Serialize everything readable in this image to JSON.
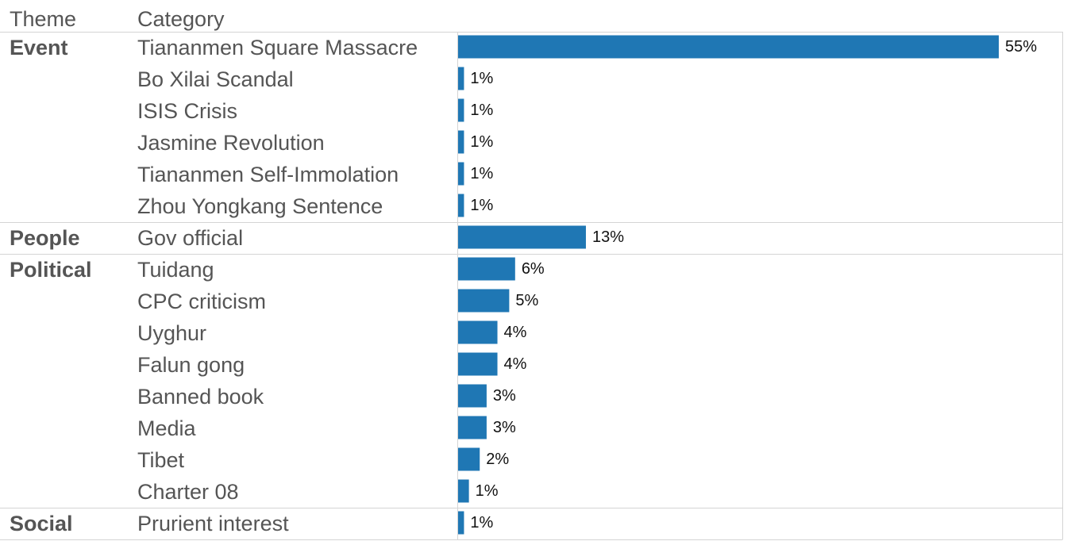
{
  "headers": {
    "theme": "Theme",
    "category": "Category"
  },
  "colors": {
    "bar": "#1f77b4",
    "divider": "#d4d4d4",
    "label": "#555555",
    "value": "#111111"
  },
  "chart_data": {
    "type": "bar",
    "orientation": "horizontal",
    "grouped_by": "theme",
    "value_unit": "%",
    "value_range": [
      0,
      55
    ],
    "groups": [
      {
        "theme": "Event",
        "rows": [
          {
            "category": "Tiananmen Square Massacre",
            "value": 55,
            "label": "55%"
          },
          {
            "category": "Bo Xilai Scandal",
            "value": 0.6,
            "label": "1%"
          },
          {
            "category": "ISIS Crisis",
            "value": 0.6,
            "label": "1%"
          },
          {
            "category": "Jasmine Revolution",
            "value": 0.6,
            "label": "1%"
          },
          {
            "category": "Tiananmen Self-Immolation",
            "value": 0.6,
            "label": "1%"
          },
          {
            "category": "Zhou Yongkang Sentence",
            "value": 0.6,
            "label": "1%"
          }
        ]
      },
      {
        "theme": "People",
        "rows": [
          {
            "category": "Gov official",
            "value": 13,
            "label": "13%"
          }
        ]
      },
      {
        "theme": "Political",
        "rows": [
          {
            "category": "Tuidang",
            "value": 5.8,
            "label": "6%"
          },
          {
            "category": "CPC criticism",
            "value": 5.2,
            "label": "5%"
          },
          {
            "category": "Uyghur",
            "value": 4,
            "label": "4%"
          },
          {
            "category": "Falun gong",
            "value": 4,
            "label": "4%"
          },
          {
            "category": "Banned book",
            "value": 2.9,
            "label": "3%"
          },
          {
            "category": "Media",
            "value": 2.9,
            "label": "3%"
          },
          {
            "category": "Tibet",
            "value": 2.2,
            "label": "2%"
          },
          {
            "category": "Charter 08",
            "value": 1.1,
            "label": "1%"
          }
        ]
      },
      {
        "theme": "Social",
        "rows": [
          {
            "category": "Prurient interest",
            "value": 0.6,
            "label": "1%"
          }
        ]
      }
    ]
  }
}
